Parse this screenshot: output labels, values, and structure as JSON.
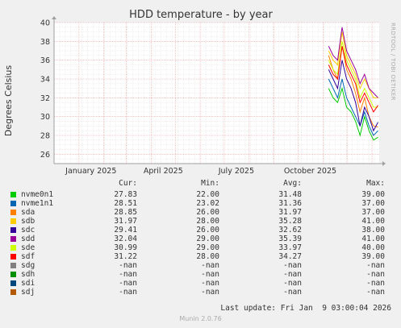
{
  "chart_data": {
    "type": "line",
    "title": "HDD temperature - by year",
    "ylabel": "Degrees Celsius",
    "ylim": [
      25,
      40
    ],
    "yticks": [
      26,
      28,
      30,
      32,
      34,
      36,
      38,
      40
    ],
    "xlim": [
      "2024-12-01",
      "2026-01-10"
    ],
    "xticks": [
      {
        "label": "January 2025",
        "date": "2025-01-01"
      },
      {
        "label": "April 2025",
        "date": "2025-04-01"
      },
      {
        "label": "July 2025",
        "date": "2025-07-01"
      },
      {
        "label": "October 2025",
        "date": "2025-10-01"
      }
    ],
    "grid": true,
    "data_start": "2025-11-08",
    "series": [
      {
        "name": "nvme0n1",
        "color": "#00cc00",
        "values": [
          33.0,
          32.0,
          31.5,
          33.0,
          31.0,
          30.5,
          29.5,
          28.0,
          30.0,
          28.5,
          27.5,
          27.8
        ]
      },
      {
        "name": "nvme1n1",
        "color": "#0066b3",
        "values": [
          34.0,
          33.0,
          32.0,
          34.0,
          32.0,
          31.0,
          30.0,
          29.0,
          30.5,
          29.0,
          28.0,
          28.5
        ]
      },
      {
        "name": "sda",
        "color": "#ff8000",
        "values": [
          36.5,
          35.0,
          34.0,
          37.5,
          35.0,
          34.0,
          32.5,
          30.5,
          32.0,
          30.0,
          29.0,
          28.9
        ]
      },
      {
        "name": "sdb",
        "color": "#ffcc00",
        "values": [
          37.0,
          36.0,
          35.5,
          39.0,
          36.5,
          35.5,
          34.5,
          33.0,
          34.0,
          33.0,
          32.0,
          32.0
        ]
      },
      {
        "name": "sdc",
        "color": "#330099",
        "values": [
          35.0,
          34.0,
          33.0,
          36.0,
          34.0,
          33.0,
          31.5,
          29.0,
          31.0,
          30.0,
          28.5,
          29.4
        ]
      },
      {
        "name": "sdd",
        "color": "#990099",
        "values": [
          37.5,
          36.5,
          36.0,
          39.5,
          37.0,
          36.0,
          35.0,
          33.5,
          34.5,
          33.0,
          32.5,
          32.0
        ]
      },
      {
        "name": "sde",
        "color": "#ccff00",
        "values": [
          36.0,
          35.0,
          34.5,
          38.0,
          36.0,
          35.0,
          34.0,
          32.0,
          33.0,
          32.0,
          31.0,
          31.0
        ]
      },
      {
        "name": "sdf",
        "color": "#ff0000",
        "values": [
          35.5,
          34.5,
          34.0,
          37.5,
          35.5,
          34.5,
          33.5,
          31.5,
          32.5,
          31.5,
          30.5,
          31.2
        ]
      }
    ]
  },
  "legend": {
    "headers": {
      "cur": "Cur:",
      "min": "Min:",
      "avg": "Avg:",
      "max": "Max:"
    },
    "rows": [
      {
        "name": "nvme0n1",
        "color": "#00cc00",
        "cur": "27.83",
        "min": "22.00",
        "avg": "31.48",
        "max": "39.00"
      },
      {
        "name": "nvme1n1",
        "color": "#0066b3",
        "cur": "28.51",
        "min": "23.02",
        "avg": "31.36",
        "max": "37.00"
      },
      {
        "name": "sda",
        "color": "#ff8000",
        "cur": "28.85",
        "min": "26.00",
        "avg": "31.97",
        "max": "37.00"
      },
      {
        "name": "sdb",
        "color": "#ffcc00",
        "cur": "31.97",
        "min": "28.00",
        "avg": "35.28",
        "max": "41.00"
      },
      {
        "name": "sdc",
        "color": "#330099",
        "cur": "29.41",
        "min": "26.00",
        "avg": "32.62",
        "max": "38.00"
      },
      {
        "name": "sdd",
        "color": "#990099",
        "cur": "32.04",
        "min": "29.00",
        "avg": "35.39",
        "max": "41.00"
      },
      {
        "name": "sde",
        "color": "#ccff00",
        "cur": "30.99",
        "min": "29.00",
        "avg": "33.97",
        "max": "40.00"
      },
      {
        "name": "sdf",
        "color": "#ff0000",
        "cur": "31.22",
        "min": "28.00",
        "avg": "34.27",
        "max": "39.00"
      },
      {
        "name": "sdg",
        "color": "#808080",
        "cur": "-nan",
        "min": "-nan",
        "avg": "-nan",
        "max": "-nan"
      },
      {
        "name": "sdh",
        "color": "#008f00",
        "cur": "-nan",
        "min": "-nan",
        "avg": "-nan",
        "max": "-nan"
      },
      {
        "name": "sdi",
        "color": "#00487d",
        "cur": "-nan",
        "min": "-nan",
        "avg": "-nan",
        "max": "-nan"
      },
      {
        "name": "sdj",
        "color": "#b35a00",
        "cur": "-nan",
        "min": "-nan",
        "avg": "-nan",
        "max": "-nan"
      }
    ]
  },
  "last_update": "Last update: Fri Jan  9 03:00:04 2026",
  "watermark": "RRDTOOL / TOBI OETIKER",
  "munin_version": "Munin 2.0.76"
}
